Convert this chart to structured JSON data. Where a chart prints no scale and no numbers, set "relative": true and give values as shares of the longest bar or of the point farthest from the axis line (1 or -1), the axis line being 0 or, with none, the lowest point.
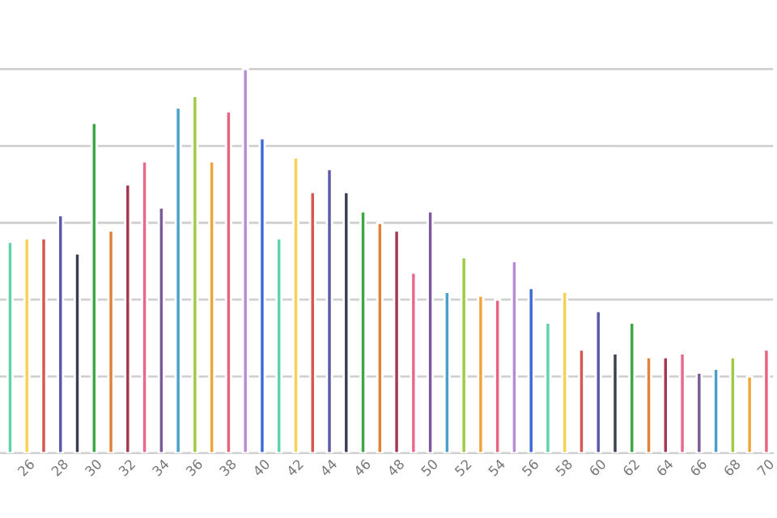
{
  "chart_data": {
    "type": "bar",
    "relative": true,
    "grid": "y",
    "categories": [
      null,
      "26",
      null,
      "28",
      null,
      "30",
      null,
      "32",
      null,
      "34",
      null,
      "36",
      null,
      "38",
      null,
      "40",
      null,
      "42",
      null,
      "44",
      null,
      "46",
      null,
      "48",
      null,
      "50",
      null,
      "52",
      null,
      "54",
      null,
      "56",
      null,
      "58",
      null,
      "60",
      null,
      "62",
      null,
      "64",
      null,
      "66",
      null,
      "68",
      null,
      "70"
    ],
    "values": [
      0.55,
      0.56,
      0.56,
      0.62,
      0.52,
      0.86,
      0.58,
      0.7,
      0.76,
      0.64,
      0.9,
      0.93,
      0.76,
      0.89,
      1,
      0.82,
      0.56,
      0.77,
      0.68,
      0.74,
      0.68,
      0.63,
      0.6,
      0.58,
      0.47,
      0.63,
      0.42,
      0.51,
      0.41,
      0.4,
      0.5,
      0.43,
      0.34,
      0.42,
      0.27,
      0.37,
      0.26,
      0.34,
      0.25,
      0.25,
      0.26,
      0.21,
      0.22,
      0.25,
      0.2,
      0.27
    ],
    "colors": [
      "#5fd3a8",
      "#f7d154",
      "#d6574f",
      "#5c5aa8",
      "#3a3f52",
      "#3aa844",
      "#e0823a",
      "#a33850",
      "#e8698a",
      "#7a5a9a",
      "#4aa0c8",
      "#9ccc45",
      "#f2a43a",
      "#e8647e",
      "#b88ad8",
      "#3b6cd4",
      "#5fd3a8",
      "#f7d154",
      "#d6574f",
      "#5c5aa8",
      "#3a3f52",
      "#3aa844",
      "#e0823a",
      "#a33850",
      "#e8698a",
      "#7a5a9a",
      "#4aa0c8",
      "#9ccc45",
      "#f2a43a",
      "#e8647e",
      "#b88ad8",
      "#3b6cd4",
      "#5fd3a8",
      "#f7d154",
      "#d6574f",
      "#5c5aa8",
      "#3a3f52",
      "#3aa844",
      "#e0823a",
      "#a33850",
      "#e8698a",
      "#7a5a9a",
      "#4aa0c8",
      "#9ccc45",
      "#f2a43a",
      "#e8647e"
    ]
  }
}
